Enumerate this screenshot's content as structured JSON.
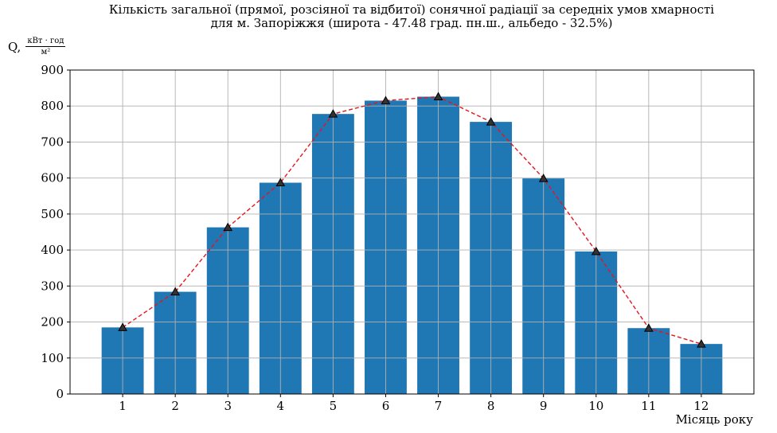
{
  "chart_data": {
    "type": "bar",
    "title_lines": [
      "Кількість загальної (прямої, розсіяної та відбитої) сонячної радіації за середніх умов хмарності",
      "для м. Запоріжжя (широта - 47.48 град. пн.ш., альбедо - 32.5%)"
    ],
    "ylabel": {
      "prefix": "Q,",
      "numerator": "кВт · год",
      "denominator": "м²"
    },
    "xlabel": "Місяць року",
    "categories": [
      "1",
      "2",
      "3",
      "4",
      "5",
      "6",
      "7",
      "8",
      "9",
      "10",
      "11",
      "12"
    ],
    "values": [
      185,
      284,
      463,
      587,
      778,
      815,
      826,
      756,
      599,
      396,
      183,
      139
    ],
    "line_overlay": {
      "values": [
        185,
        284,
        463,
        587,
        778,
        815,
        826,
        756,
        599,
        396,
        183,
        139
      ],
      "style": "dashed",
      "marker": "triangle"
    },
    "ylim": [
      0,
      900
    ],
    "yticks": [
      0,
      100,
      200,
      300,
      400,
      500,
      600,
      700,
      800,
      900
    ],
    "grid": true,
    "colors": {
      "bar": "#1f77b4",
      "line": "#e8141c",
      "marker": "#000000",
      "grid": "#b0b0b0"
    }
  }
}
